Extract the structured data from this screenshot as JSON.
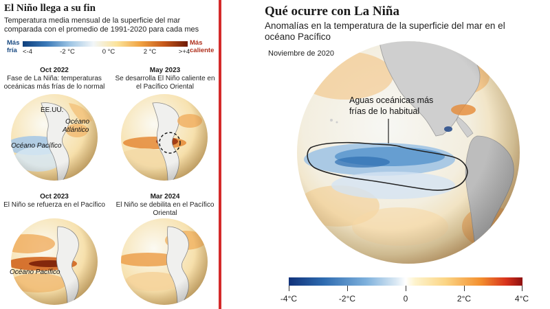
{
  "left": {
    "title": "El Niño llega a su fin",
    "subtitle": "Temperatura media mensual de la superficie del mar comparada con el promedio de 1991-2020 para cada mes",
    "scale": {
      "cold_line1": "Más",
      "cold_line2": "fría",
      "warm_line1": "Más",
      "warm_line2": "caliente",
      "ticks": [
        "<-4",
        "-2 °C",
        "0 °C",
        "2 °C",
        ">+4"
      ]
    },
    "panels": [
      {
        "date": "Oct 2022",
        "desc": "Fase de La Niña: temperaturas oceánicas más frías de lo normal",
        "labels": {
          "usa": "EE.UU.",
          "atlantic_1": "Océano",
          "atlantic_2": "Atlántico",
          "pacific": "Océano Pacífico"
        }
      },
      {
        "date": "May 2023",
        "desc": "Se desarrolla El Niño caliente en el Pacífico Oriental"
      },
      {
        "date": "Oct 2023",
        "desc": "El Niño se refuerza en el Pacífico",
        "labels": {
          "pacific": "Océano Pacífico"
        }
      },
      {
        "date": "Mar 2024",
        "desc": "El Niño se debilita en el Pacífico Oriental"
      }
    ]
  },
  "right": {
    "title": "Qué ocurre con La Niña",
    "subtitle": "Anomalías en la temperatura de la superficie del mar en el océano Pacífico",
    "date": "Noviembre de 2020",
    "annotation_1": "Aguas oceánicas más",
    "annotation_2": "frías de lo habitual",
    "scale_ticks": [
      "-4°C",
      "-2°C",
      "0",
      "2°C",
      "4°C"
    ]
  },
  "colors": {
    "divider": "#d42a2a",
    "cold": "#2e6bb0",
    "warm": "#e6932f",
    "land": "#a9a9a9"
  }
}
